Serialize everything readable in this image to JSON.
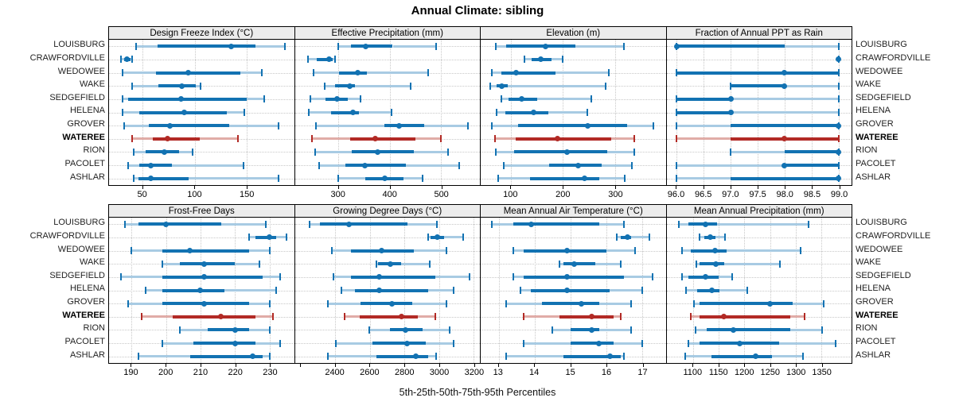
{
  "title": "Annual Climate: sibling",
  "caption": "5th-25th-50th-75th-95th Percentiles",
  "colors": {
    "primary": "#1272B2",
    "primary_light": "#A8CBE3",
    "highlight": "#B22A25",
    "highlight_light": "#E0ACA7",
    "header_bg": "#ECECEC",
    "grid": "#C8C8C8",
    "border": "#000000"
  },
  "chart_data": {
    "type": "dotplot-percentile",
    "title": "Annual Climate: sibling",
    "caption": "5th-25th-50th-75th-95th Percentiles",
    "percentiles": [
      5,
      25,
      50,
      75,
      95
    ],
    "legend_position": "none",
    "grid": "dotted",
    "sites": [
      "LOUISBURG",
      "CRAWFORDVILLE",
      "WEDOWEE",
      "WAKE",
      "SEDGEFIELD",
      "HELENA",
      "GROVER",
      "WATEREE",
      "RION",
      "PACOLET",
      "ASHLAR"
    ],
    "highlight_site": "WATEREE",
    "panels": [
      {
        "title": "Design Freeze Index (°C)",
        "row": 0,
        "col": 0,
        "xlim": [
          17.6,
          195.8
        ],
        "ticks": [
          50,
          100,
          150
        ],
        "tick_labels": [
          "50",
          "100",
          "150"
        ],
        "extra_ticks": [],
        "values": {
          "LOUISBURG": [
            44,
            64,
            135,
            159,
            187
          ],
          "CRAWFORDVILLE": [
            29,
            32,
            35,
            38,
            40
          ],
          "WEDOWEE": [
            31,
            63,
            94,
            144,
            165
          ],
          "WAKE": [
            40,
            65,
            88,
            101,
            106
          ],
          "SEDGEFIELD": [
            31,
            36,
            87,
            150,
            167
          ],
          "HELENA": [
            31,
            47,
            90,
            131,
            148
          ],
          "GROVER": [
            32,
            56,
            76,
            133,
            181
          ],
          "WATEREE": [
            40,
            60,
            74,
            105,
            142
          ],
          "RION": [
            41,
            53,
            71,
            85,
            98
          ],
          "PACOLET": [
            36,
            47,
            58,
            78,
            147
          ],
          "ASHLAR": [
            41,
            46,
            58,
            94,
            181
          ]
        }
      },
      {
        "title": "Effective Precipitation (mm)",
        "row": 0,
        "col": 1,
        "xlim": [
          215,
          576
        ],
        "ticks": [
          300,
          400,
          500
        ],
        "tick_labels": [
          "300",
          "400",
          "500"
        ],
        "extra_ticks": [],
        "values": {
          "LOUISBURG": [
            300,
            324,
            353,
            406,
            491
          ],
          "CRAWFORDVILLE": [
            240,
            257,
            281,
            288,
            293
          ],
          "WEDOWEE": [
            251,
            301,
            338,
            355,
            475
          ],
          "WAKE": [
            274,
            293,
            322,
            332,
            441
          ],
          "SEDGEFIELD": [
            245,
            275,
            298,
            319,
            343
          ],
          "HELENA": [
            242,
            285,
            329,
            340,
            404
          ],
          "GROVER": [
            256,
            389,
            419,
            468,
            553
          ],
          "WATEREE": [
            249,
            323,
            372,
            450,
            500
          ],
          "RION": [
            255,
            326,
            377,
            447,
            514
          ],
          "PACOLET": [
            263,
            313,
            351,
            432,
            535
          ],
          "ASHLAR": [
            300,
            352,
            390,
            427,
            464
          ]
        }
      },
      {
        "title": "Elevation (m)",
        "row": 0,
        "col": 2,
        "xlim": [
          42,
          397
        ],
        "ticks": [
          100,
          200,
          300
        ],
        "tick_labels": [
          "100",
          "200",
          "300"
        ],
        "extra_ticks": [],
        "values": {
          "LOUISBURG": [
            71,
            91,
            166,
            224,
            317
          ],
          "CRAWFORDVILLE": [
            126,
            139,
            157,
            178,
            200
          ],
          "WEDOWEE": [
            64,
            81,
            110,
            185,
            288
          ],
          "WAKE": [
            61,
            73,
            83,
            94,
            282
          ],
          "SEDGEFIELD": [
            82,
            95,
            120,
            150,
            254
          ],
          "HELENA": [
            72,
            90,
            143,
            172,
            246
          ],
          "GROVER": [
            64,
            114,
            247,
            323,
            374
          ],
          "WATEREE": [
            70,
            109,
            189,
            292,
            337
          ],
          "RION": [
            71,
            106,
            207,
            285,
            336
          ],
          "PACOLET": [
            86,
            173,
            229,
            274,
            332
          ],
          "ASHLAR": [
            75,
            137,
            241,
            270,
            318
          ]
        }
      },
      {
        "title": "Fraction of Annual PPT as Rain",
        "row": 0,
        "col": 3,
        "xlim": [
          95.81,
          99.24
        ],
        "ticks": [
          96.0,
          96.5,
          97.0,
          97.5,
          98.0,
          98.5,
          99.0
        ],
        "tick_labels": [
          "96.0",
          "96.5",
          "97.0",
          "97.5",
          "98.0",
          "98.5",
          "99.0"
        ],
        "extra_ticks": [],
        "values": {
          "LOUISBURG": [
            96,
            96,
            96,
            98,
            99
          ],
          "CRAWFORDVILLE": [
            99,
            99,
            99,
            99,
            99
          ],
          "WEDOWEE": [
            96,
            96,
            98,
            99,
            99
          ],
          "WAKE": [
            97,
            97,
            98,
            98,
            99
          ],
          "SEDGEFIELD": [
            96,
            96,
            97,
            97,
            99
          ],
          "HELENA": [
            96,
            96,
            97,
            97,
            99
          ],
          "GROVER": [
            96,
            97,
            99,
            99,
            99
          ],
          "WATEREE": [
            96,
            97,
            98,
            99,
            99
          ],
          "RION": [
            97,
            98,
            99,
            99,
            99
          ],
          "PACOLET": [
            96,
            98,
            98,
            99,
            99
          ],
          "ASHLAR": [
            96,
            97,
            99,
            99,
            99
          ]
        }
      },
      {
        "title": "Frost-Free Days",
        "row": 1,
        "col": 0,
        "xlim": [
          183.5,
          237.1
        ],
        "ticks": [
          190,
          200,
          210,
          220,
          230
        ],
        "tick_labels": [
          "190",
          "200",
          "210",
          "220",
          "230"
        ],
        "extra_ticks": [],
        "values": {
          "LOUISBURG": [
            188,
            192,
            200,
            216,
            229
          ],
          "CRAWFORDVILLE": [
            224,
            226,
            230,
            232,
            235
          ],
          "WEDOWEE": [
            190,
            199,
            207,
            224,
            230
          ],
          "WAKE": [
            199,
            204,
            211,
            220,
            227
          ],
          "SEDGEFIELD": [
            187,
            199,
            211,
            228,
            233
          ],
          "HELENA": [
            194,
            199,
            210,
            217,
            232
          ],
          "GROVER": [
            189,
            199,
            211,
            224,
            230
          ],
          "WATEREE": [
            193,
            202,
            216,
            226,
            231
          ],
          "RION": [
            204,
            212,
            220,
            224,
            230
          ],
          "PACOLET": [
            199,
            208,
            220,
            226,
            233
          ],
          "ASHLAR": [
            192,
            207,
            225,
            228,
            230
          ]
        }
      },
      {
        "title": "Growing Degree Days (°C)",
        "row": 1,
        "col": 1,
        "xlim": [
          2167,
          3237
        ],
        "ticks": [
          2400,
          2600,
          2800,
          3000,
          3200
        ],
        "tick_labels": [
          "2400",
          "2600",
          "2800",
          "3000",
          "3200"
        ],
        "extra_ticks": [
          2200
        ],
        "values": {
          "LOUISBURG": [
            2250,
            2310,
            2480,
            2820,
            2990
          ],
          "CRAWFORDVILLE": [
            2940,
            2950,
            2990,
            3030,
            3140
          ],
          "WEDOWEE": [
            2380,
            2490,
            2670,
            2855,
            3045
          ],
          "WAKE": [
            2640,
            2650,
            2720,
            2780,
            2945
          ],
          "SEDGEFIELD": [
            2390,
            2490,
            2655,
            2980,
            3175
          ],
          "HELENA": [
            2435,
            2515,
            2655,
            2940,
            3085
          ],
          "GROVER": [
            2360,
            2545,
            2730,
            2845,
            3045
          ],
          "WATEREE": [
            2455,
            2540,
            2785,
            2880,
            2980
          ],
          "RION": [
            2595,
            2715,
            2805,
            2905,
            3060
          ],
          "PACOLET": [
            2405,
            2615,
            2815,
            2925,
            3085
          ],
          "ASHLAR": [
            2360,
            2640,
            2865,
            2940,
            2985
          ]
        }
      },
      {
        "title": "Mean Annual Air Temperature (°C)",
        "row": 1,
        "col": 2,
        "xlim": [
          12.5,
          17.66
        ],
        "ticks": [
          13,
          14,
          15,
          16,
          17
        ],
        "tick_labels": [
          "13",
          "14",
          "15",
          "16",
          "17"
        ],
        "extra_ticks": [],
        "values": {
          "LOUISBURG": [
            12.8,
            13.4,
            13.9,
            15.8,
            16.5
          ],
          "CRAWFORDVILLE": [
            16.3,
            16.4,
            16.6,
            16.7,
            17.2
          ],
          "WEDOWEE": [
            13.4,
            13.7,
            14.9,
            16.0,
            16.8
          ],
          "WAKE": [
            14.7,
            14.8,
            15.1,
            15.7,
            16.4
          ],
          "SEDGEFIELD": [
            13.4,
            13.7,
            14.9,
            16.5,
            17.3
          ],
          "HELENA": [
            13.6,
            13.9,
            14.9,
            16.1,
            17.0
          ],
          "GROVER": [
            13.2,
            14.2,
            15.3,
            15.8,
            16.7
          ],
          "WATEREE": [
            13.7,
            14.7,
            15.6,
            16.2,
            16.4
          ],
          "RION": [
            14.5,
            15.0,
            15.6,
            15.8,
            16.7
          ],
          "PACOLET": [
            13.7,
            15.0,
            15.8,
            16.2,
            17.0
          ],
          "ASHLAR": [
            13.2,
            14.8,
            16.1,
            16.4,
            16.5
          ]
        }
      },
      {
        "title": "Mean Annual Precipitation (mm)",
        "row": 1,
        "col": 3,
        "xlim": [
          1048,
          1409
        ],
        "ticks": [
          1100,
          1150,
          1200,
          1250,
          1300,
          1350
        ],
        "tick_labels": [
          "1100",
          "1150",
          "1200",
          "1250",
          "1300",
          "1350"
        ],
        "extra_ticks": [],
        "values": {
          "LOUISBURG": [
            1072,
            1091,
            1124,
            1147,
            1325
          ],
          "CRAWFORDVILLE": [
            1113,
            1121,
            1134,
            1143,
            1162
          ],
          "WEDOWEE": [
            1079,
            1096,
            1142,
            1165,
            1310
          ],
          "WAKE": [
            1107,
            1113,
            1144,
            1160,
            1270
          ],
          "SEDGEFIELD": [
            1078,
            1090,
            1124,
            1150,
            1176
          ],
          "HELENA": [
            1086,
            1108,
            1136,
            1152,
            1205
          ],
          "GROVER": [
            1102,
            1112,
            1250,
            1294,
            1355
          ],
          "WATEREE": [
            1096,
            1112,
            1160,
            1290,
            1318
          ],
          "RION": [
            1105,
            1126,
            1178,
            1290,
            1352
          ],
          "PACOLET": [
            1090,
            1112,
            1191,
            1268,
            1378
          ],
          "ASHLAR": [
            1084,
            1135,
            1222,
            1253,
            1315
          ]
        }
      }
    ]
  }
}
